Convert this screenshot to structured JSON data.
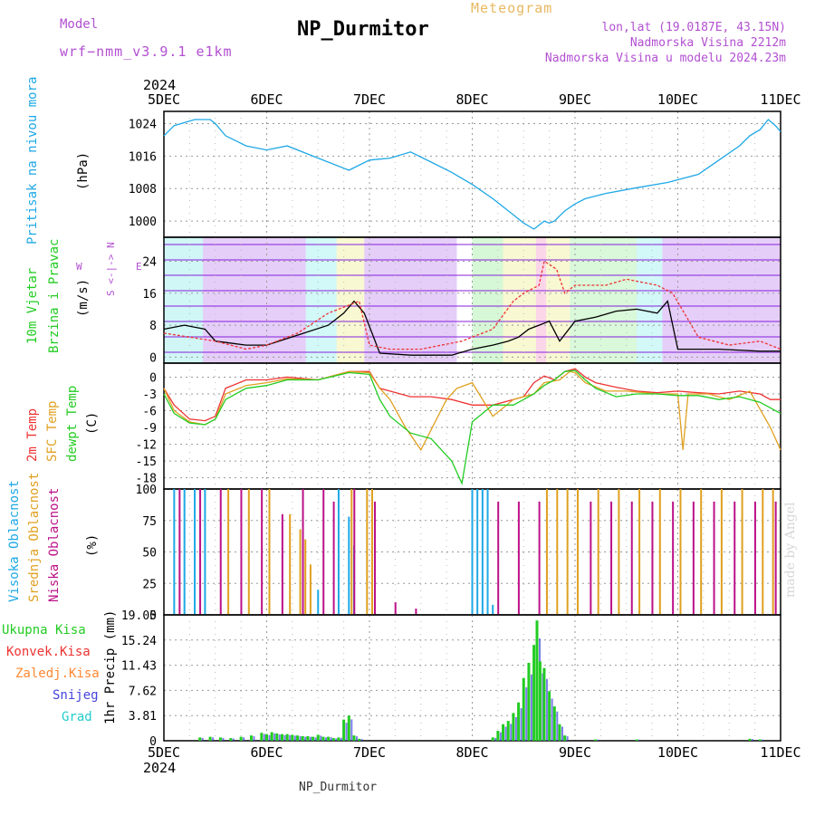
{
  "header": {
    "model_label": "Model",
    "model_name": "wrf−nmm_v3.9.1  e1km",
    "title": "NP_Durmitor",
    "meteogram_label": "Meteogram",
    "lonlat": "lon,lat (19.0187E, 43.15N)",
    "altitude": "Nadmorska Visina 2212m",
    "model_altitude": "Nadmorska Visina u modelu 2024.23m"
  },
  "footer": {
    "station": "NP_Durmitor",
    "credit": "made by Angel"
  },
  "colors": {
    "pressure": "#1ea8e6",
    "t2m": "#ee3333",
    "tsfc": "#e0a020",
    "dewpoint": "#22cc22",
    "high_cloud": "#1ea8e6",
    "mid_cloud": "#e0a020",
    "low_cloud": "#bb1188",
    "total_precip": "#22cc22",
    "conv_precip": "#ee3333",
    "frozen_precip": "#ff8833",
    "snow": "#4444dd",
    "hail": "#22cccc"
  },
  "chart_data": [
    {
      "type": "line",
      "panel": "pressure",
      "ylabel": [
        "Pritisak na nivou mora",
        "(hPa)"
      ],
      "yticks": [
        "1024",
        "1016",
        "1008",
        "1000"
      ],
      "ylim": [
        996,
        1027
      ],
      "x_days": [
        "5DEC",
        "6DEC",
        "7DEC",
        "8DEC",
        "9DEC",
        "10DEC",
        "11DEC"
      ],
      "x_top_year": "2024",
      "grid": true,
      "series": [
        {
          "x": [
            0,
            0.1,
            0.3,
            0.45,
            0.5,
            0.6,
            0.8,
            1.0,
            1.2,
            1.5,
            1.8,
            2.0,
            2.2,
            2.4,
            2.6,
            2.8,
            3.0,
            3.2,
            3.4,
            3.5,
            3.6,
            3.7,
            3.75,
            3.8,
            3.9,
            4.0,
            4.1,
            4.3,
            4.6,
            4.9,
            5.2,
            5.4,
            5.6,
            5.7,
            5.8,
            5.88,
            5.95,
            6.0
          ],
          "values": [
            1021,
            1023.5,
            1025,
            1025,
            1024,
            1021,
            1018.5,
            1017.5,
            1018.5,
            1015.5,
            1012.5,
            1015,
            1015.5,
            1017,
            1014.5,
            1012,
            1009,
            1005.5,
            1001.5,
            999.5,
            998,
            1000,
            999.5,
            1000,
            1002.5,
            1004.2,
            1005.5,
            1006.8,
            1008.2,
            1009.5,
            1011.5,
            1015,
            1018.5,
            1021,
            1022.5,
            1025,
            1023.5,
            1022
          ]
        }
      ]
    },
    {
      "type": "line",
      "panel": "wind",
      "ylabel": [
        "10m Vjetar",
        "Brzina i Pravac",
        "(m/s)"
      ],
      "yticks": [
        "24",
        "16",
        "8",
        "0"
      ],
      "ylim": [
        -1.5,
        30
      ],
      "note_compass": [
        "N",
        "S",
        "W",
        "E"
      ],
      "grid": true,
      "series": [
        {
          "x": [
            0,
            0.2,
            0.4,
            0.5,
            0.8,
            1.0,
            1.3,
            1.6,
            1.75,
            1.85,
            1.95,
            2.1,
            2.4,
            2.8,
            3.0,
            3.2,
            3.35,
            3.45,
            3.55,
            3.65,
            3.75,
            3.85,
            4.0,
            4.2,
            4.4,
            4.6,
            4.8,
            4.9,
            5.0,
            5.4,
            5.8,
            6.0
          ],
          "values": [
            7,
            8,
            7,
            4,
            3,
            3,
            5.5,
            8,
            11,
            14,
            11,
            1,
            0.5,
            0.5,
            2,
            3,
            4,
            5,
            7,
            8,
            9,
            4,
            9,
            10,
            11.5,
            12,
            11,
            14,
            2,
            2,
            1.5,
            1.5
          ]
        },
        {
          "x": [
            0,
            0.5,
            0.8,
            1.0,
            1.3,
            1.6,
            1.9,
            2.0,
            2.2,
            2.5,
            2.9,
            3.2,
            3.4,
            3.5,
            3.65,
            3.7,
            3.82,
            3.9,
            4.0,
            4.3,
            4.5,
            4.8,
            4.95,
            5.2,
            5.5,
            5.8,
            6.0
          ],
          "values": [
            6,
            4,
            2,
            3,
            6,
            11,
            14,
            3,
            2,
            2,
            4,
            7,
            14,
            16,
            18,
            24,
            22,
            16,
            18,
            18,
            19.5,
            18,
            16,
            5,
            3,
            4,
            2
          ]
        }
      ]
    },
    {
      "type": "line",
      "panel": "temperature",
      "ylabel": [
        "2m Temp",
        "SFC Temp",
        "dewpt Temp",
        "(C)"
      ],
      "yticks": [
        "0",
        "-3",
        "-6",
        "-9",
        "-12",
        "-15",
        "-18"
      ],
      "ylim": [
        -20,
        2.5
      ],
      "grid": true,
      "series": [
        {
          "x": [
            0,
            0.1,
            0.25,
            0.4,
            0.5,
            0.6,
            0.8,
            1.0,
            1.2,
            1.5,
            1.8,
            2.0,
            2.1,
            2.2,
            2.4,
            2.6,
            2.8,
            3.0,
            3.2,
            3.4,
            3.5,
            3.6,
            3.7,
            3.8,
            3.9,
            4.0,
            4.1,
            4.2,
            4.4,
            4.6,
            4.8,
            5.0,
            5.2,
            5.4,
            5.6,
            5.8,
            5.9,
            6.0
          ],
          "values": [
            -2,
            -5,
            -7.5,
            -7.8,
            -7,
            -2,
            -0.5,
            -0.5,
            0,
            -0.5,
            1,
            1,
            -2,
            -2.5,
            -3.5,
            -3.5,
            -4,
            -5,
            -5,
            -4,
            -3.5,
            -1,
            0.2,
            -0.5,
            1,
            1.5,
            0,
            -1,
            -1.8,
            -2.5,
            -2.8,
            -2.5,
            -2.8,
            -3,
            -2.5,
            -3,
            -4,
            -4
          ]
        },
        {
          "x": [
            0,
            0.1,
            0.25,
            0.4,
            0.5,
            0.6,
            0.8,
            1.0,
            1.2,
            1.5,
            1.8,
            2.0,
            2.1,
            2.2,
            2.35,
            2.5,
            2.75,
            2.85,
            3.0,
            3.2,
            3.4,
            3.6,
            3.7,
            3.85,
            3.95,
            4.0,
            4.1,
            4.3,
            4.5,
            4.8,
            5.0,
            5.05,
            5.1,
            5.3,
            5.5,
            5.7,
            5.9,
            6.0
          ],
          "values": [
            -2,
            -6,
            -8,
            -8.5,
            -7.5,
            -3,
            -1.5,
            -1,
            -0.3,
            -0.5,
            1,
            0.8,
            -2,
            -4,
            -9,
            -13,
            -4,
            -2,
            -1,
            -7,
            -4,
            -3,
            -1,
            -0.5,
            1,
            0.8,
            -1,
            -2.5,
            -2.5,
            -3,
            -3,
            -13,
            -3,
            -3,
            -4,
            -2.5,
            -9,
            -13
          ]
        },
        {
          "x": [
            0,
            0.1,
            0.25,
            0.4,
            0.5,
            0.6,
            0.8,
            1.0,
            1.2,
            1.5,
            1.8,
            2.0,
            2.1,
            2.2,
            2.4,
            2.6,
            2.8,
            2.9,
            3.0,
            3.2,
            3.4,
            3.5,
            3.6,
            3.7,
            3.8,
            3.9,
            4.0,
            4.1,
            4.2,
            4.4,
            4.6,
            4.8,
            5.0,
            5.2,
            5.4,
            5.6,
            5.8,
            6.0
          ],
          "values": [
            -3,
            -6.5,
            -8.2,
            -8.5,
            -7.5,
            -4,
            -2,
            -1.5,
            -0.5,
            -0.5,
            0.8,
            0.5,
            -4,
            -7,
            -10,
            -11,
            -15,
            -19,
            -8,
            -5,
            -5,
            -4,
            -3,
            -1.5,
            -0.5,
            1,
            1.2,
            -0.5,
            -2,
            -3.5,
            -3,
            -3,
            -3.3,
            -3.3,
            -4,
            -3.5,
            -4.5,
            -6.5
          ]
        }
      ]
    },
    {
      "type": "bar",
      "panel": "clouds",
      "ylabel": [
        "Visoka Oblacnost",
        "Srednja Oblacnost",
        "Niska Oblacnost",
        "(%)"
      ],
      "yticks": [
        "100",
        "75",
        "50",
        "25",
        "0"
      ],
      "ylim": [
        0,
        100
      ],
      "grid": true,
      "series": [
        {
          "name": "Visoka Oblacnost",
          "x": [
            0.1,
            0.2,
            0.3,
            0.4,
            1.5,
            1.7,
            1.8,
            1.85,
            3.0,
            3.05,
            3.1,
            3.15,
            3.2
          ],
          "values": [
            100,
            100,
            100,
            100,
            20,
            100,
            78,
            55,
            100,
            100,
            100,
            100,
            8
          ]
        },
        {
          "name": "Srednja Oblacnost",
          "x": [
            0.6,
            0.8,
            1.0,
            1.2,
            1.3,
            1.35,
            1.4,
            1.8,
            1.95,
            2.0,
            3.7,
            3.8,
            3.9,
            4.0,
            4.2,
            4.4,
            4.6,
            4.8,
            5.0,
            5.2,
            5.4,
            5.6,
            5.8,
            5.9
          ],
          "values": [
            100,
            100,
            100,
            80,
            68,
            60,
            40,
            100,
            100,
            100,
            100,
            100,
            100,
            100,
            100,
            100,
            100,
            100,
            100,
            100,
            100,
            100,
            100,
            100
          ]
        },
        {
          "name": "Niska Oblacnost",
          "x": [
            0.1,
            0.3,
            0.5,
            0.7,
            0.9,
            1.1,
            1.3,
            1.5,
            1.6,
            1.8,
            2.0,
            2.2,
            2.4,
            3.2,
            3.4,
            3.6,
            4.1,
            4.3,
            4.5,
            4.7,
            4.9,
            5.1,
            5.3,
            5.5,
            5.7,
            5.9
          ],
          "values": [
            100,
            100,
            100,
            100,
            100,
            80,
            100,
            100,
            90,
            100,
            90,
            10,
            5,
            90,
            90,
            90,
            90,
            90,
            90,
            90,
            90,
            90,
            90,
            90,
            90,
            90
          ]
        }
      ]
    },
    {
      "type": "bar",
      "panel": "precipitation",
      "ylabel": [
        "1hr Precip (mm)"
      ],
      "yticks": [
        "19.05",
        "15.24",
        "11.43",
        "7.62",
        "3.81",
        "0"
      ],
      "ylim": [
        0,
        19.05
      ],
      "legend": [
        "Ukupna Kisa",
        "Konvek.Kisa",
        "Zaledj.Kisa",
        "Snijeg",
        "Grad"
      ],
      "grid": true,
      "series": [
        {
          "name": "Ukupna Kisa",
          "x": [
            0.35,
            0.45,
            0.55,
            0.65,
            0.75,
            0.85,
            0.95,
            1.0,
            1.05,
            1.1,
            1.15,
            1.2,
            1.25,
            1.3,
            1.35,
            1.4,
            1.45,
            1.5,
            1.55,
            1.6,
            1.65,
            1.7,
            1.75,
            1.8,
            1.85,
            1.9,
            3.2,
            3.25,
            3.3,
            3.35,
            3.4,
            3.45,
            3.5,
            3.55,
            3.6,
            3.63,
            3.66,
            3.7,
            3.75,
            3.8,
            3.85,
            3.9,
            4.2,
            4.6,
            5.7,
            5.8
          ],
          "values": [
            0.5,
            0.6,
            0.5,
            0.4,
            0.6,
            0.8,
            1.2,
            1.0,
            1.3,
            1.1,
            1.0,
            1.0,
            0.9,
            0.8,
            0.7,
            0.7,
            0.6,
            0.9,
            0.6,
            0.6,
            0.4,
            0.5,
            3.2,
            3.8,
            0.8,
            0.3,
            0.5,
            1.5,
            2.5,
            3.0,
            4.2,
            5.8,
            9.5,
            11.8,
            14.5,
            18.2,
            12.0,
            11.0,
            7.5,
            5.2,
            2.5,
            0.8,
            0.2,
            0.2,
            0.3,
            0.2
          ]
        }
      ]
    }
  ]
}
